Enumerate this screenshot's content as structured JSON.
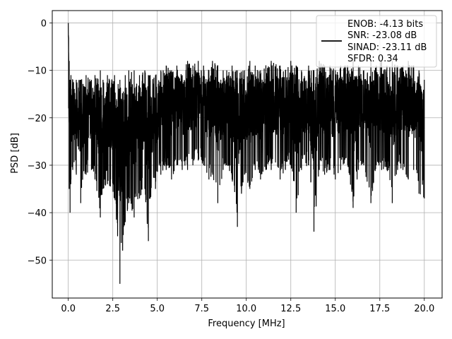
{
  "chart_data": {
    "type": "line",
    "title": "",
    "xlabel": "Frequency [MHz]",
    "ylabel": "PSD [dB]",
    "xlim": [
      -0.9,
      21.0
    ],
    "ylim": [
      -58,
      2.6
    ],
    "grid": true,
    "legend_position": "top-right",
    "line_color": "#000000",
    "x_ticks": [
      0.0,
      2.5,
      5.0,
      7.5,
      10.0,
      12.5,
      15.0,
      17.5,
      20.0
    ],
    "x_tick_labels": [
      "0.0",
      "2.5",
      "5.0",
      "7.5",
      "10.0",
      "12.5",
      "15.0",
      "17.5",
      "20.0"
    ],
    "y_ticks": [
      0,
      -10,
      -20,
      -30,
      -40,
      -50
    ],
    "y_tick_labels": [
      "0",
      "−10",
      "−20",
      "−30",
      "−40",
      "−50"
    ],
    "legend": {
      "lines": [
        "ENOB: -4.13 bits",
        "SNR: -23.08 dB",
        "SINAD: -23.11 dB",
        "SFDR: 0.34"
      ]
    },
    "series": [
      {
        "x": [
          0.0,
          0.02,
          0.05,
          0.1,
          0.15,
          0.25,
          0.45,
          0.7,
          1.0,
          1.3,
          1.5,
          1.8,
          1.95,
          2.2,
          2.6,
          2.9,
          3.2,
          3.4,
          3.7,
          4.0,
          4.3,
          4.5,
          4.6,
          4.9,
          5.2,
          5.5,
          5.8,
          6.1,
          6.4,
          6.7,
          7.0,
          7.3,
          7.6,
          7.9,
          8.1,
          8.4,
          8.7,
          8.9,
          9.2,
          9.5,
          9.9,
          10.2,
          10.5,
          10.8,
          11.1,
          11.4,
          11.9,
          12.2,
          12.5,
          12.8,
          13.1,
          13.5,
          13.8,
          14.1,
          14.4,
          14.7,
          15.0,
          15.3,
          15.7,
          16.0,
          16.3,
          16.6,
          17.0,
          17.3,
          17.6,
          17.9,
          18.2,
          18.5,
          18.8,
          19.1,
          19.4,
          19.7,
          20.0
        ],
        "upper": [
          0.0,
          -3,
          -8,
          -12,
          -11,
          -12,
          -12,
          -12,
          -11,
          -12,
          -11,
          -10,
          -12,
          -11,
          -11,
          -12,
          -11,
          -10,
          -10,
          -11,
          -10,
          -11,
          -11,
          -11,
          -10,
          -9,
          -10,
          -9,
          -11,
          -8,
          -9,
          -8,
          -9,
          -10,
          -8,
          -9,
          -10,
          -10,
          -9,
          -10,
          -10,
          -8,
          -9,
          -10,
          -9,
          -8,
          -9,
          -10,
          -8,
          -9,
          -10,
          -9,
          -10,
          -8,
          -9,
          -9,
          -10,
          -9,
          -9,
          -8,
          -9,
          -10,
          -8,
          -9,
          -8,
          -9,
          -8,
          -9,
          -9,
          -8,
          -9,
          -10,
          -12
        ],
        "lower": [
          0.0,
          -18,
          -35,
          -40,
          -33,
          -31,
          -32,
          -38,
          -32,
          -31,
          -33,
          -41,
          -35,
          -34,
          -37,
          -55,
          -42,
          -38,
          -41,
          -37,
          -35,
          -46,
          -37,
          -35,
          -32,
          -31,
          -33,
          -30,
          -31,
          -31,
          -30,
          -29,
          -30,
          -33,
          -32,
          -38,
          -31,
          -30,
          -33,
          -43,
          -32,
          -35,
          -31,
          -33,
          -31,
          -31,
          -33,
          -31,
          -30,
          -40,
          -31,
          -30,
          -44,
          -31,
          -32,
          -31,
          -33,
          -31,
          -30,
          -39,
          -31,
          -30,
          -38,
          -30,
          -31,
          -31,
          -38,
          -31,
          -31,
          -33,
          -31,
          -36,
          -37
        ]
      }
    ]
  }
}
